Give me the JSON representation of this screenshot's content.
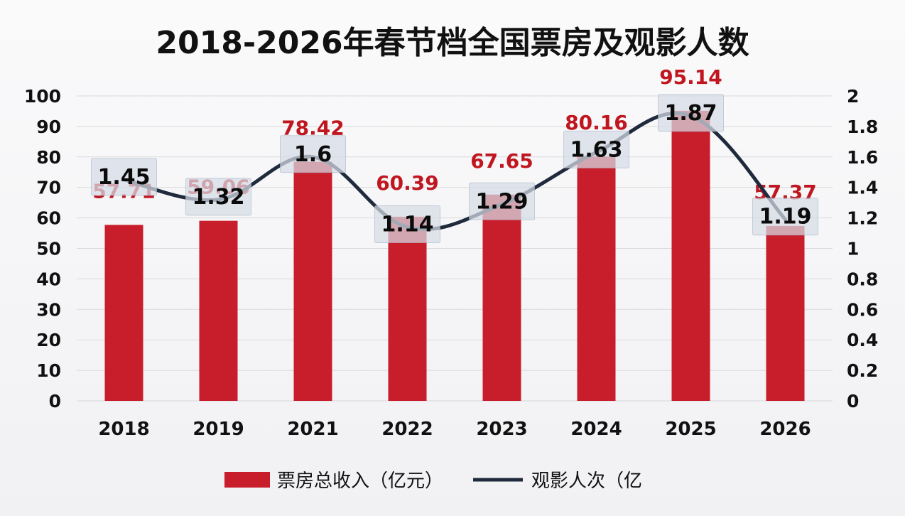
{
  "chart_data": {
    "type": "bar",
    "title": "2018-2026年春节档全国票房及观影人数",
    "categories": [
      "2018",
      "2019",
      "2021",
      "2022",
      "2023",
      "2024",
      "2025",
      "2026"
    ],
    "series": [
      {
        "name": "票房总收入（亿元）",
        "type": "bar",
        "axis": "left",
        "values": [
          57.71,
          59.06,
          78.42,
          60.39,
          67.65,
          80.16,
          95.14,
          57.37
        ],
        "labels": [
          "57.71",
          "59.06",
          "78.42",
          "60.39",
          "67.65",
          "80.16",
          "95.14",
          "57.37"
        ],
        "color": "#c81d2b",
        "label_color": "#c0161f"
      },
      {
        "name": "观影人次（亿",
        "type": "line",
        "axis": "right",
        "values": [
          1.45,
          1.32,
          1.6,
          1.14,
          1.29,
          1.63,
          1.87,
          1.19
        ],
        "labels": [
          "1.45",
          "1.32",
          "1.6",
          "1.14",
          "1.29",
          "1.63",
          "1.87",
          "1.19"
        ],
        "color": "#1f2a3c"
      }
    ],
    "y_left": {
      "ylim": [
        0,
        100
      ],
      "ticks": [
        "0",
        "10",
        "20",
        "30",
        "40",
        "50",
        "60",
        "70",
        "80",
        "90",
        "100"
      ]
    },
    "y_right": {
      "ylim": [
        0,
        2
      ],
      "ticks": [
        "0",
        "0.2",
        "0.4",
        "0.6",
        "0.8",
        "1",
        "1.2",
        "1.4",
        "1.6",
        "1.8",
        "2"
      ]
    },
    "grid": true,
    "legend_position": "bottom"
  }
}
